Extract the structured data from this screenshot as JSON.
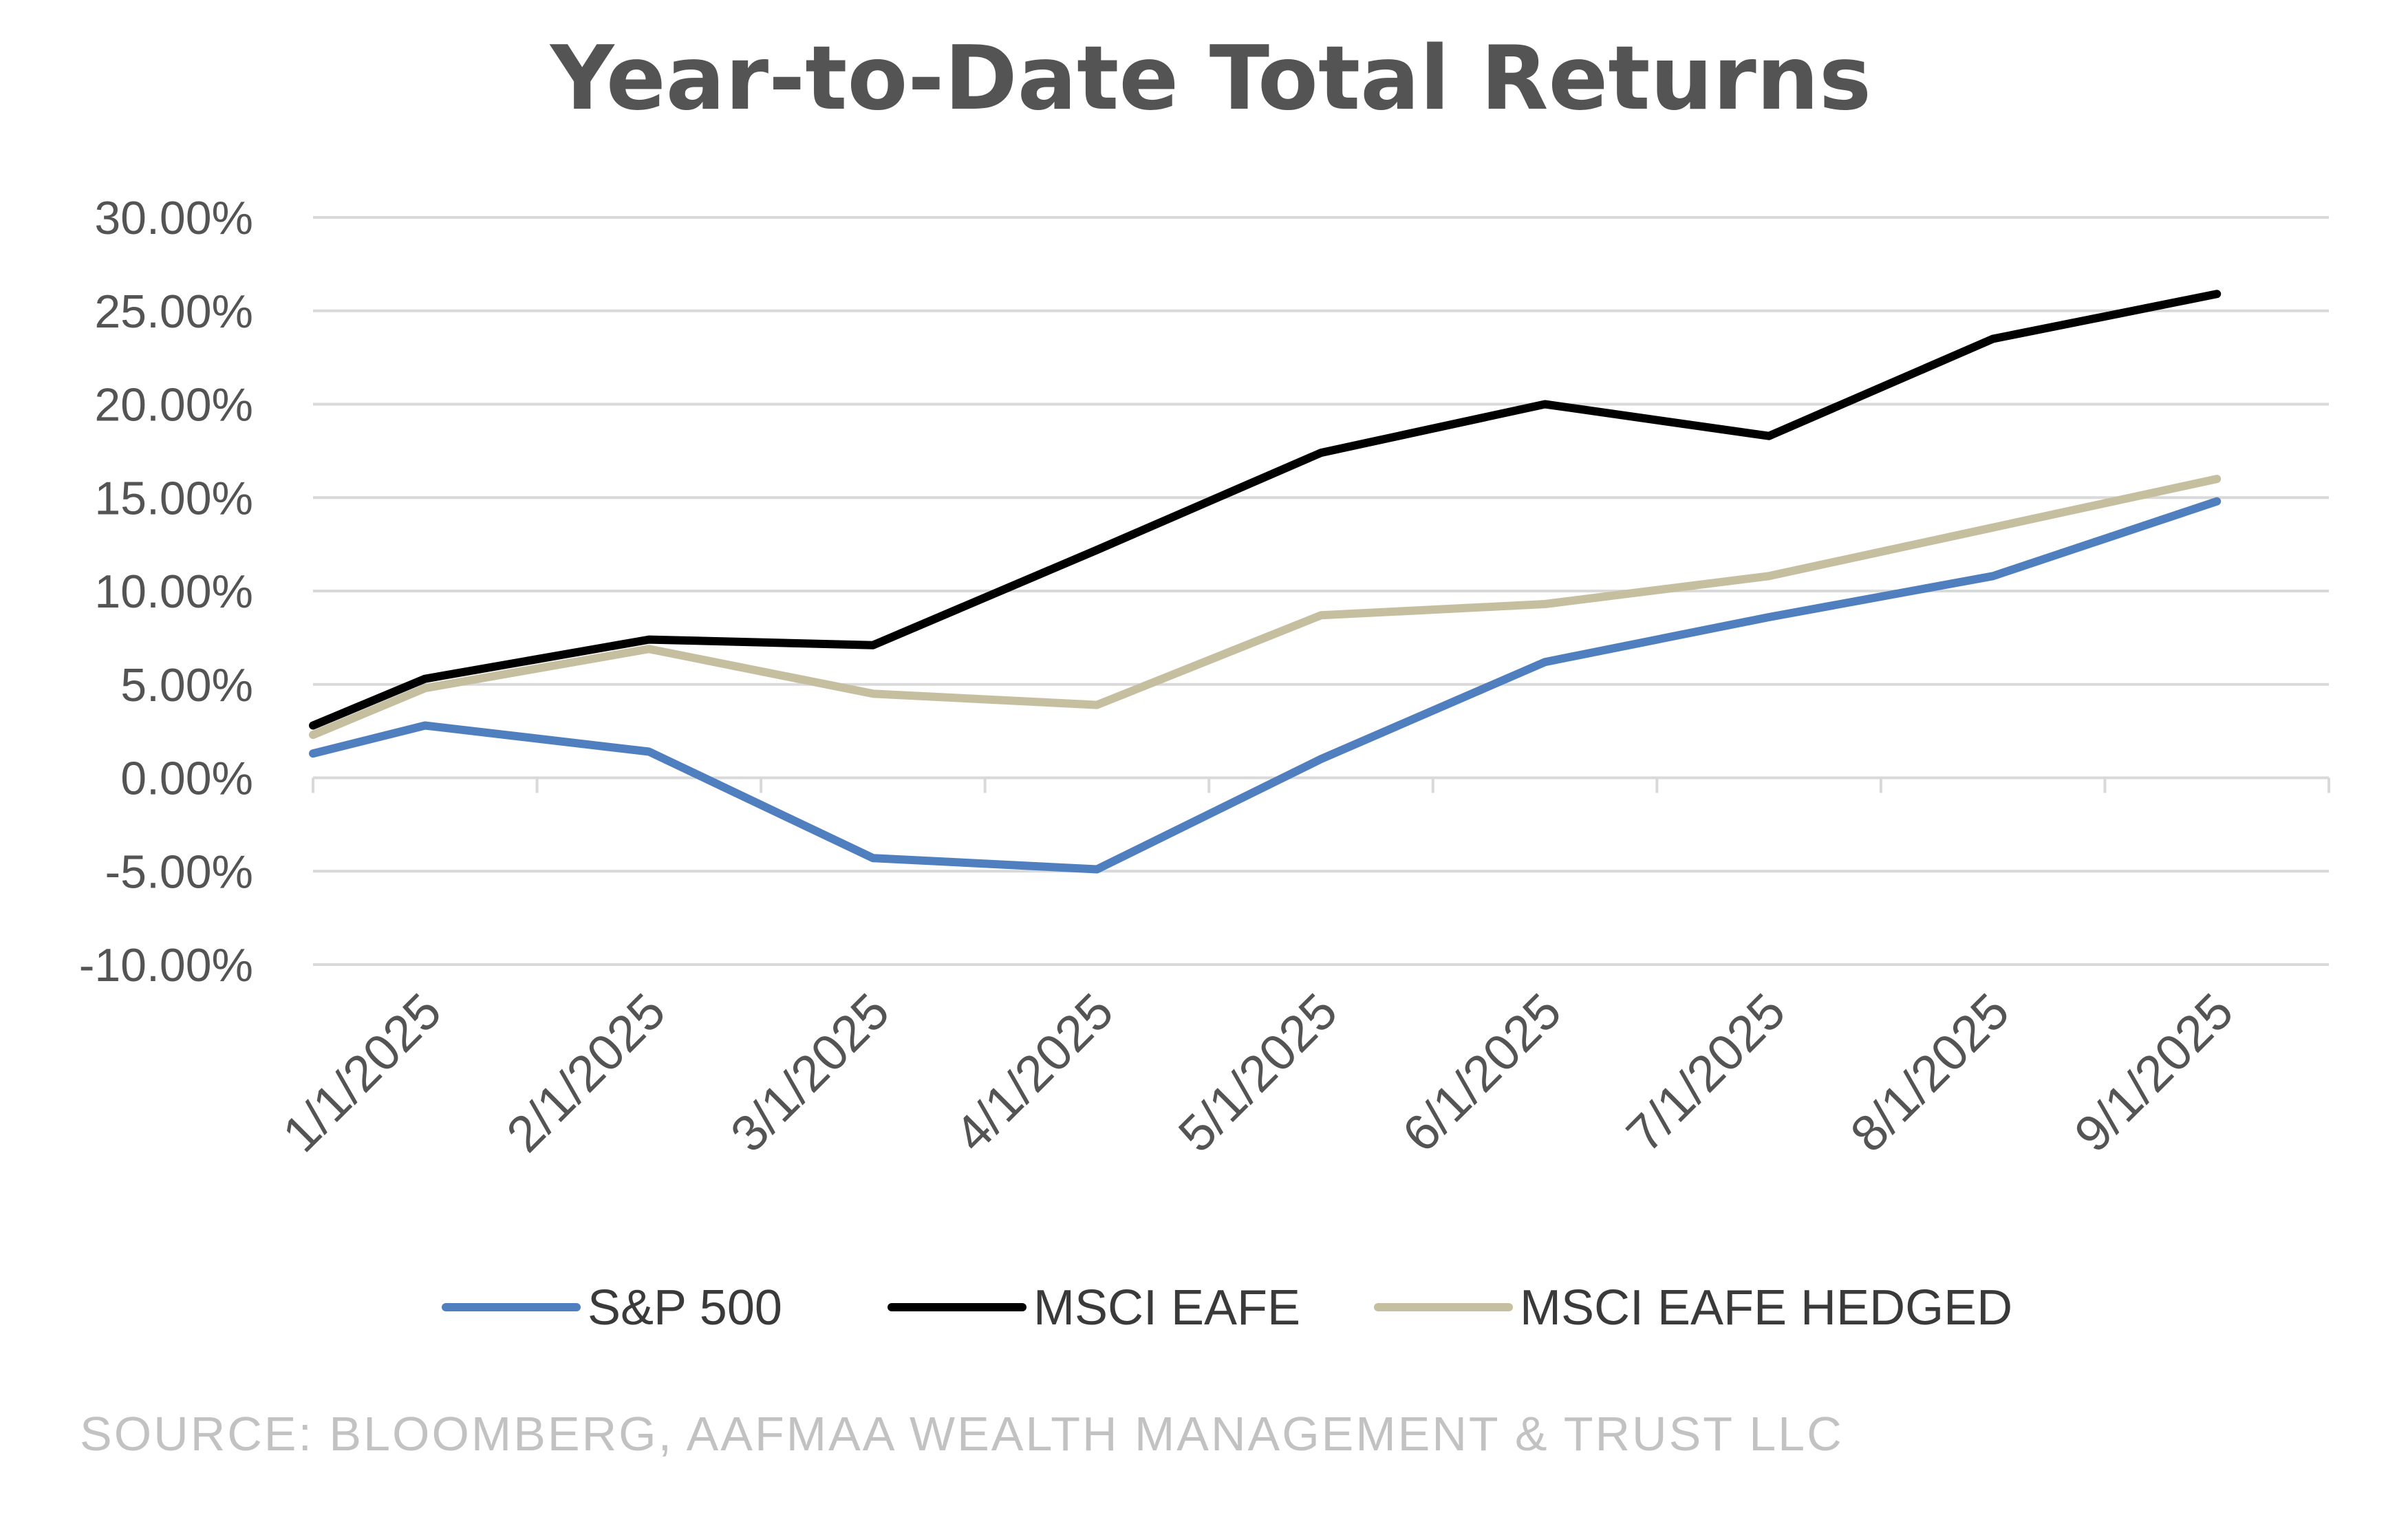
{
  "chart_data": {
    "type": "line",
    "title": "Year-to-Date Total Returns",
    "categories": [
      "1/1/2025",
      "2/1/2025",
      "3/1/2025",
      "4/1/2025",
      "5/1/2025",
      "6/1/2025",
      "7/1/2025",
      "8/1/2025",
      "9/1/2025"
    ],
    "ylim": [
      -10,
      30
    ],
    "yticks": [
      30,
      25,
      20,
      15,
      10,
      5,
      0,
      -5,
      -10
    ],
    "ytick_labels": [
      "30.00%",
      "25.00%",
      "20.00%",
      "15.00%",
      "10.00%",
      "5.00%",
      "0.00%",
      "-5.00%",
      "-10.00%"
    ],
    "grid": true,
    "legend_position": "bottom",
    "series": [
      {
        "name": "S&P 500",
        "color": "#4f7fbf",
        "x": [
          0,
          0.5,
          1.5,
          2.5,
          3.5,
          4.5,
          5.5,
          6.5,
          7.5,
          8.5
        ],
        "values": [
          1.3,
          2.8,
          1.4,
          -4.3,
          -4.9,
          1.0,
          6.2,
          8.6,
          10.8,
          14.8
        ]
      },
      {
        "name": "MSCI EAFE",
        "color": "#000000",
        "x": [
          0,
          0.5,
          1.5,
          2.5,
          3.5,
          4.5,
          5.5,
          6.5,
          7.5,
          8.5
        ],
        "values": [
          2.8,
          5.3,
          7.4,
          7.1,
          12.2,
          17.4,
          20.0,
          18.3,
          23.5,
          25.9
        ]
      },
      {
        "name": "MSCI EAFE HEDGED",
        "color": "#c6bf9f",
        "x": [
          0,
          0.5,
          1.5,
          2.5,
          3.5,
          4.5,
          5.5,
          6.5,
          7.5,
          8.5
        ],
        "values": [
          2.3,
          4.8,
          6.9,
          4.5,
          3.9,
          8.7,
          9.3,
          10.8,
          13.4,
          16.0
        ]
      }
    ]
  },
  "source": "SOURCE: BLOOMBERG, AAFMAA WEALTH MANAGEMENT & TRUST LLC"
}
